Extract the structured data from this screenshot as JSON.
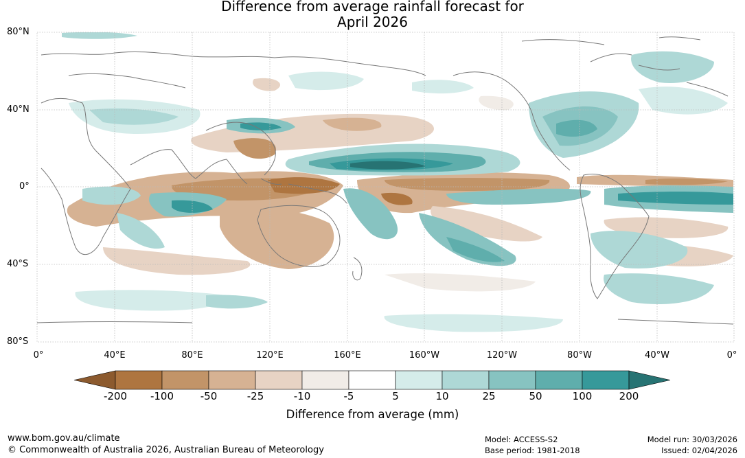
{
  "title": {
    "line1": "Difference from average rainfall forecast for",
    "line2": "April 2026"
  },
  "map": {
    "lat_labels": [
      "80°N",
      "40°N",
      "0°",
      "40°S",
      "80°S"
    ],
    "lon_labels": [
      "0°",
      "40°E",
      "80°E",
      "120°E",
      "160°E",
      "160°W",
      "120°W",
      "80°W",
      "40°W",
      "0°"
    ]
  },
  "legend": {
    "label": "Difference from average (mm)",
    "ticks": [
      "-200",
      "-100",
      "-50",
      "-25",
      "-10",
      "-5",
      "5",
      "10",
      "25",
      "50",
      "100",
      "200"
    ],
    "colors": [
      "#8c5a2e",
      "#ae7540",
      "#c29468",
      "#d6b293",
      "#e7d3c4",
      "#f1ece7",
      "#ffffff",
      "#d5ecea",
      "#aed8d6",
      "#87c3c1",
      "#5faeac",
      "#36999a",
      "#277373"
    ]
  },
  "footer": {
    "website": "www.bom.gov.au/climate",
    "copyright": "© Commonwealth of Australia 2026, Australian Bureau of Meteorology",
    "model": "Model: ACCESS-S2",
    "base_period": "Base period: 1981-2018",
    "model_run": "Model run: 30/03/2026",
    "issued": "Issued: 02/04/2026"
  }
}
